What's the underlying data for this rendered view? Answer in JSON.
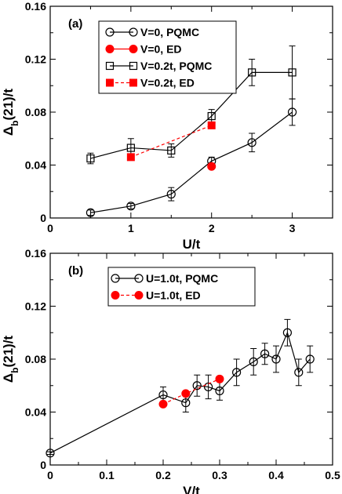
{
  "chart_data": [
    {
      "type": "line",
      "panel_label": "(a)",
      "xlabel": "U/t",
      "ylabel": "Δb(21)/t",
      "ylabel_main": "Δ",
      "ylabel_sub": "b",
      "ylabel_rest": "(21)/t",
      "xlim": [
        0,
        3.5
      ],
      "ylim": [
        0,
        0.16
      ],
      "x_ticks": [
        0,
        1,
        2,
        3
      ],
      "x_tick_labels": [
        "0",
        "1",
        "2",
        "3"
      ],
      "y_ticks": [
        0,
        0.04,
        0.08,
        0.12,
        0.16
      ],
      "y_tick_labels": [
        "0",
        "0.04",
        "0.08",
        "0.12",
        "0.16"
      ],
      "legend_position": "top-center",
      "series": [
        {
          "name": "V=0, PQMC",
          "marker": "open-circle",
          "line": "solid",
          "color": "#000000",
          "x": [
            0.5,
            1.0,
            1.5,
            2.0,
            2.5,
            3.0
          ],
          "y": [
            0.004,
            0.009,
            0.018,
            0.043,
            0.057,
            0.08
          ],
          "err": [
            0.002,
            0.002,
            0.005,
            0.003,
            0.007,
            0.01
          ]
        },
        {
          "name": "V=0, ED",
          "marker": "filled-circle",
          "line": "solid",
          "color": "#ff0000",
          "x": [
            2.0
          ],
          "y": [
            0.039
          ],
          "err": [
            0
          ]
        },
        {
          "name": "V=0.2t, PQMC",
          "marker": "open-square",
          "line": "solid",
          "color": "#000000",
          "x": [
            0.5,
            1.0,
            1.5,
            2.0,
            2.5,
            3.0
          ],
          "y": [
            0.045,
            0.053,
            0.051,
            0.077,
            0.11,
            0.11
          ],
          "err": [
            0.004,
            0.007,
            0.005,
            0.005,
            0.01,
            0.02
          ]
        },
        {
          "name": "V=0.2t, ED",
          "marker": "filled-square",
          "line": "dashed",
          "color": "#ff0000",
          "x": [
            1.0,
            2.0
          ],
          "y": [
            0.046,
            0.07
          ],
          "err": [
            0,
            0
          ]
        }
      ]
    },
    {
      "type": "line",
      "panel_label": "(b)",
      "xlabel": "V/t",
      "ylabel": "Δb(21)/t",
      "ylabel_main": "Δ",
      "ylabel_sub": "b",
      "ylabel_rest": "(21)/t",
      "xlim": [
        0,
        0.5
      ],
      "ylim": [
        0,
        0.16
      ],
      "x_ticks": [
        0,
        0.1,
        0.2,
        0.3,
        0.4,
        0.5
      ],
      "x_tick_labels": [
        "0",
        "0.1",
        "0.2",
        "0.3",
        "0.4",
        "0.5"
      ],
      "y_ticks": [
        0,
        0.04,
        0.08,
        0.12,
        0.16
      ],
      "y_tick_labels": [
        "0",
        "0.04",
        "0.08",
        "0.12",
        "0.16"
      ],
      "legend_position": "top-left",
      "series": [
        {
          "name": "U=1.0t, PQMC",
          "marker": "open-circle",
          "line": "solid",
          "color": "#000000",
          "x": [
            0.0,
            0.2,
            0.24,
            0.26,
            0.28,
            0.3,
            0.33,
            0.36,
            0.38,
            0.4,
            0.42,
            0.44,
            0.46
          ],
          "y": [
            0.009,
            0.053,
            0.047,
            0.06,
            0.059,
            0.056,
            0.07,
            0.078,
            0.084,
            0.08,
            0.1,
            0.07,
            0.08
          ],
          "err": [
            0.001,
            0.006,
            0.007,
            0.008,
            0.009,
            0.007,
            0.01,
            0.01,
            0.008,
            0.01,
            0.01,
            0.01,
            0.01
          ]
        },
        {
          "name": "U=1.0t, ED",
          "marker": "filled-circle",
          "line": "dashed",
          "color": "#ff0000",
          "x": [
            0.2,
            0.24,
            0.3
          ],
          "y": [
            0.046,
            0.054,
            0.065
          ],
          "err": [
            0,
            0,
            0
          ]
        }
      ]
    }
  ]
}
